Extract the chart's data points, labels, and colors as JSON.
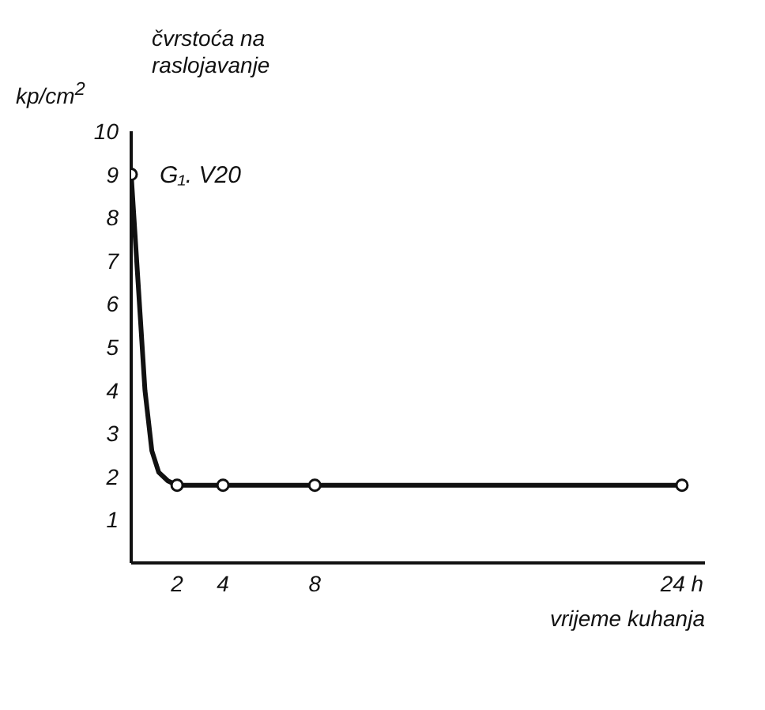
{
  "chart_data": {
    "type": "line",
    "title": "čvrstoća na raslojavanje",
    "xlabel": "vrijeme kuhanja",
    "ylabel": "kp/cm$^{2}$",
    "annotations": [
      {
        "text": "G₁. V20",
        "x": 0,
        "y": 9
      }
    ],
    "series": [
      {
        "color": "#111111",
        "marker": "none",
        "x": [
          0,
          0.3,
          0.6,
          0.9,
          1.2,
          1.6,
          2,
          4,
          8,
          24
        ],
        "values": [
          9,
          6.5,
          4,
          2.6,
          2.1,
          1.9,
          1.8,
          1.8,
          1.8,
          1.8
        ]
      },
      {
        "type": "scatter",
        "color": "#111111",
        "marker": "circle",
        "x": [
          0,
          2,
          4,
          8,
          24
        ],
        "values": [
          9,
          1.8,
          1.8,
          1.8,
          1.8
        ]
      }
    ],
    "xlim": [
      0,
      25
    ],
    "xticks": [
      2,
      4,
      8,
      {
        "value": 24,
        "label": "24 h"
      }
    ],
    "ylim": [
      0,
      10
    ],
    "yticks": [
      1,
      2,
      3,
      4,
      5,
      6,
      7,
      8,
      9,
      10
    ]
  }
}
